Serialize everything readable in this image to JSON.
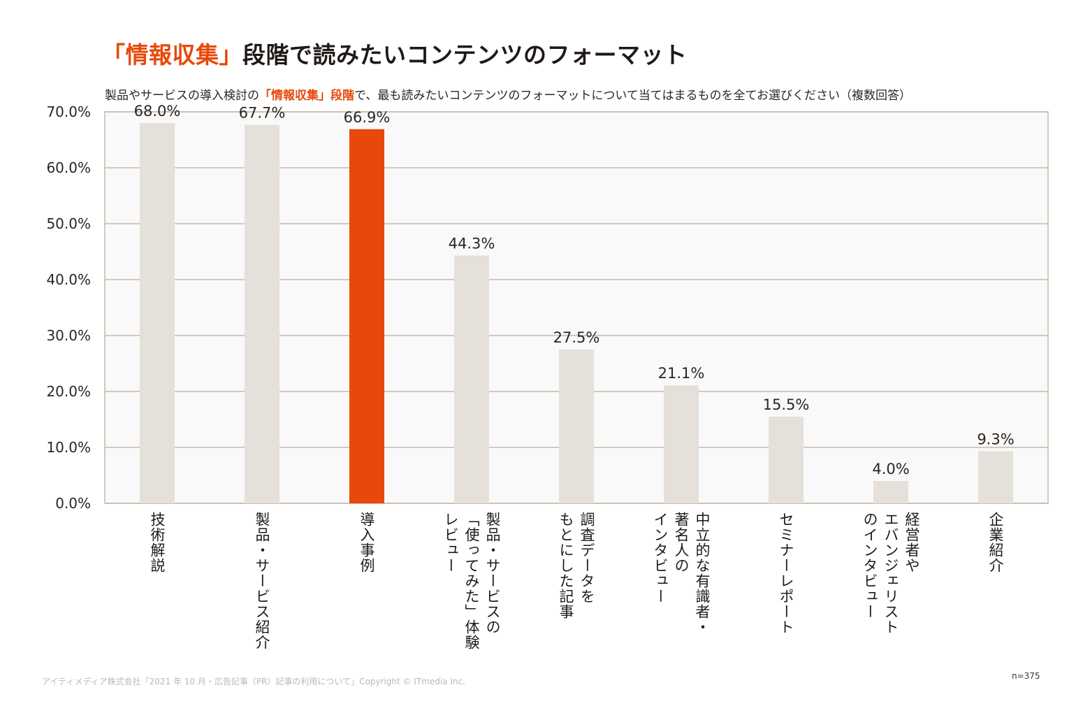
{
  "title": {
    "accent": "「情報収集」",
    "rest": "段階で読みたいコンテンツのフォーマット"
  },
  "subtitle": {
    "pre": "製品やサービスの導入検討の",
    "accent": "「情報収集」段階",
    "post": "で、最も読みたいコンテンツのフォーマットについて当てはまるものを全てお選びください（複数回答）"
  },
  "footer": "アイティメディア株式会社「2021 年 10 月・広告記事（PR）記事の利用について」Copyright © ITmedia Inc.",
  "n_label": "n=375",
  "colors": {
    "highlight": "#e8490b",
    "bar": "#e5e0da",
    "grid": "#c9b8a6",
    "plot_bg": "#f9f9f9"
  },
  "chart_data": {
    "type": "bar",
    "title": "「情報収集」段階で読みたいコンテンツのフォーマット",
    "xlabel": "",
    "ylabel": "",
    "ylim": [
      0,
      70
    ],
    "yticks": [
      0,
      10,
      20,
      30,
      40,
      50,
      60,
      70
    ],
    "ytick_labels": [
      "0.0%",
      "10.0%",
      "20.0%",
      "30.0%",
      "40.0%",
      "50.0%",
      "60.0%",
      "70.0%"
    ],
    "grid": true,
    "highlight_index": 2,
    "categories": [
      [
        "技術解説"
      ],
      [
        "製品・サービス紹介"
      ],
      [
        "導入事例"
      ],
      [
        "製品・サービスの",
        "「使ってみた」体験",
        "レビュー"
      ],
      [
        "調査データを",
        "もとにした記事"
      ],
      [
        "中立的な有識者・",
        "著名人の",
        "インタビュー"
      ],
      [
        "セミナーレポート"
      ],
      [
        "経営者や",
        "エバンジェリスト",
        "のインタビュー"
      ],
      [
        "企業紹介"
      ]
    ],
    "values": [
      68.0,
      67.7,
      66.9,
      44.3,
      27.5,
      21.1,
      15.5,
      4.0,
      9.3
    ],
    "value_labels": [
      "68.0%",
      "67.7%",
      "66.9%",
      "44.3%",
      "27.5%",
      "21.1%",
      "15.5%",
      "4.0%",
      "9.3%"
    ]
  }
}
